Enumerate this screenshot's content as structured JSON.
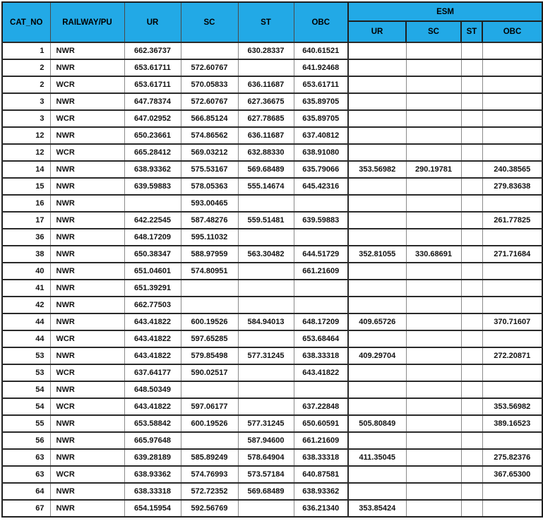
{
  "colors": {
    "header_bg": "#22a9e6",
    "grid_dark": "#1f1f1f",
    "grid_gray": "#8a8a8a"
  },
  "table": {
    "group_header": "ESM",
    "column_keys": [
      "cat_no",
      "railway_pu",
      "ur",
      "sc",
      "st",
      "obc",
      "esm_ur",
      "esm_sc",
      "esm_st",
      "esm_obc"
    ],
    "columns": [
      {
        "key": "cat_no",
        "label": "CAT_NO"
      },
      {
        "key": "railway_pu",
        "label": "RAILWAY/PU"
      },
      {
        "key": "ur",
        "label": "UR"
      },
      {
        "key": "sc",
        "label": "SC"
      },
      {
        "key": "st",
        "label": "ST"
      },
      {
        "key": "obc",
        "label": "OBC"
      },
      {
        "key": "esm_ur",
        "label": "UR",
        "group": "ESM"
      },
      {
        "key": "esm_sc",
        "label": "SC",
        "group": "ESM"
      },
      {
        "key": "esm_st",
        "label": "ST",
        "group": "ESM"
      },
      {
        "key": "esm_obc",
        "label": "OBC",
        "group": "ESM"
      }
    ],
    "rows": [
      [
        "1",
        "NWR",
        "662.36737",
        "",
        "630.28337",
        "640.61521",
        "",
        "",
        "",
        ""
      ],
      [
        "2",
        "NWR",
        "653.61711",
        "572.60767",
        "",
        "641.92468",
        "",
        "",
        "",
        ""
      ],
      [
        "2",
        "WCR",
        "653.61711",
        "570.05833",
        "636.11687",
        "653.61711",
        "",
        "",
        "",
        ""
      ],
      [
        "3",
        "NWR",
        "647.78374",
        "572.60767",
        "627.36675",
        "635.89705",
        "",
        "",
        "",
        ""
      ],
      [
        "3",
        "WCR",
        "647.02952",
        "566.85124",
        "627.78685",
        "635.89705",
        "",
        "",
        "",
        ""
      ],
      [
        "12",
        "NWR",
        "650.23661",
        "574.86562",
        "636.11687",
        "637.40812",
        "",
        "",
        "",
        ""
      ],
      [
        "12",
        "WCR",
        "665.28412",
        "569.03212",
        "632.88330",
        "638.91080",
        "",
        "",
        "",
        ""
      ],
      [
        "14",
        "NWR",
        "638.93362",
        "575.53167",
        "569.68489",
        "635.79066",
        "353.56982",
        "290.19781",
        "",
        "240.38565"
      ],
      [
        "15",
        "NWR",
        "639.59883",
        "578.05363",
        "555.14674",
        "645.42316",
        "",
        "",
        "",
        "279.83638"
      ],
      [
        "16",
        "NWR",
        "",
        "593.00465",
        "",
        "",
        "",
        "",
        "",
        ""
      ],
      [
        "17",
        "NWR",
        "642.22545",
        "587.48276",
        "559.51481",
        "639.59883",
        "",
        "",
        "",
        "261.77825"
      ],
      [
        "36",
        "NWR",
        "648.17209",
        "595.11032",
        "",
        "",
        "",
        "",
        "",
        ""
      ],
      [
        "38",
        "NWR",
        "650.38347",
        "588.97959",
        "563.30482",
        "644.51729",
        "352.81055",
        "330.68691",
        "",
        "271.71684"
      ],
      [
        "40",
        "NWR",
        "651.04601",
        "574.80951",
        "",
        "661.21609",
        "",
        "",
        "",
        ""
      ],
      [
        "41",
        "NWR",
        "651.39291",
        "",
        "",
        "",
        "",
        "",
        "",
        ""
      ],
      [
        "42",
        "NWR",
        "662.77503",
        "",
        "",
        "",
        "",
        "",
        "",
        ""
      ],
      [
        "44",
        "NWR",
        "643.41822",
        "600.19526",
        "584.94013",
        "648.17209",
        "409.65726",
        "",
        "",
        "370.71607"
      ],
      [
        "44",
        "WCR",
        "643.41822",
        "597.65285",
        "",
        "653.68464",
        "",
        "",
        "",
        ""
      ],
      [
        "53",
        "NWR",
        "643.41822",
        "579.85498",
        "577.31245",
        "638.33318",
        "409.29704",
        "",
        "",
        "272.20871"
      ],
      [
        "53",
        "WCR",
        "637.64177",
        "590.02517",
        "",
        "643.41822",
        "",
        "",
        "",
        ""
      ],
      [
        "54",
        "NWR",
        "648.50349",
        "",
        "",
        "",
        "",
        "",
        "",
        ""
      ],
      [
        "54",
        "WCR",
        "643.41822",
        "597.06177",
        "",
        "637.22848",
        "",
        "",
        "",
        "353.56982"
      ],
      [
        "55",
        "NWR",
        "653.58842",
        "600.19526",
        "577.31245",
        "650.60591",
        "505.80849",
        "",
        "",
        "389.16523"
      ],
      [
        "56",
        "NWR",
        "665.97648",
        "",
        "587.94600",
        "661.21609",
        "",
        "",
        "",
        ""
      ],
      [
        "63",
        "NWR",
        "639.28189",
        "585.89249",
        "578.64904",
        "638.33318",
        "411.35045",
        "",
        "",
        "275.82376"
      ],
      [
        "63",
        "WCR",
        "638.93362",
        "574.76993",
        "573.57184",
        "640.87581",
        "",
        "",
        "",
        "367.65300"
      ],
      [
        "64",
        "NWR",
        "638.33318",
        "572.72352",
        "569.68489",
        "638.93362",
        "",
        "",
        "",
        ""
      ],
      [
        "67",
        "NWR",
        "654.15954",
        "592.56769",
        "",
        "636.21340",
        "353.85424",
        "",
        "",
        ""
      ]
    ]
  }
}
